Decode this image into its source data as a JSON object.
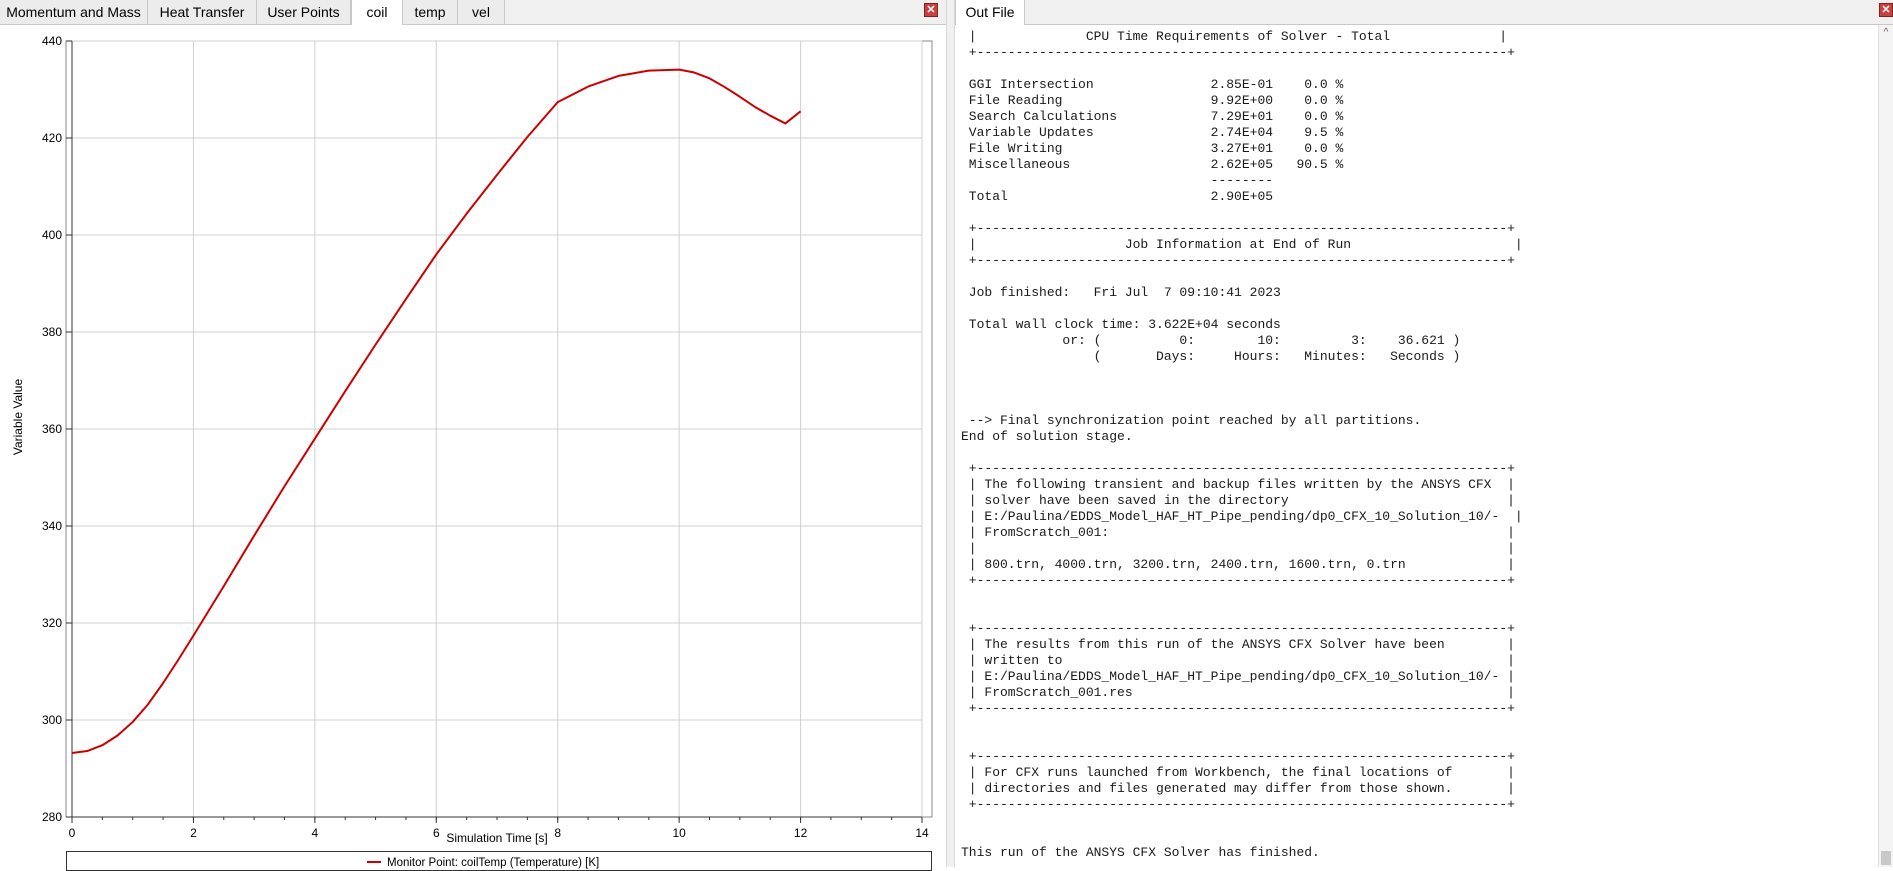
{
  "left_tabs": [
    {
      "label": "Momentum and Mass",
      "active": false
    },
    {
      "label": "Heat Transfer",
      "active": false
    },
    {
      "label": "User Points",
      "active": false
    },
    {
      "label": "coil",
      "active": true
    },
    {
      "label": "temp",
      "active": false
    },
    {
      "label": "vel",
      "active": false
    }
  ],
  "right_tabs": [
    {
      "label": "Out File",
      "active": true
    }
  ],
  "close_glyph": "✕",
  "scroll_up_glyph": "^",
  "chart_data": {
    "type": "line",
    "title": "",
    "xlabel": "Simulation Time [s]",
    "ylabel": "Variable Value",
    "xlim": [
      0,
      14
    ],
    "ylim": [
      280,
      440
    ],
    "xticks": [
      0,
      2,
      4,
      6,
      8,
      10,
      12,
      14
    ],
    "yticks": [
      280,
      300,
      320,
      340,
      360,
      380,
      400,
      420,
      440
    ],
    "grid": true,
    "legend": "bottom",
    "series": [
      {
        "name": "Monitor Point: coilTemp (Temperature) [K]",
        "color": "#cc0000",
        "x": [
          0,
          0.25,
          0.5,
          0.75,
          1.0,
          1.25,
          1.5,
          1.75,
          2.0,
          2.5,
          3.0,
          3.5,
          4.0,
          4.5,
          5.0,
          5.5,
          6.0,
          6.5,
          7.0,
          7.5,
          8.0,
          8.5,
          9.0,
          9.5,
          10.0,
          10.25,
          10.5,
          10.75,
          11.0,
          11.25,
          11.5,
          11.75,
          12.0
        ],
        "y": [
          293.2,
          293.6,
          294.8,
          296.8,
          299.6,
          303.2,
          307.6,
          312.4,
          317.4,
          327.6,
          338.0,
          348.2,
          358.0,
          367.8,
          377.4,
          386.8,
          396.0,
          404.4,
          412.4,
          420.2,
          427.4,
          430.6,
          432.8,
          433.9,
          434.1,
          433.5,
          432.3,
          430.5,
          428.5,
          426.4,
          424.6,
          423.0,
          425.5
        ]
      }
    ]
  },
  "out_file": {
    "lines": [
      " |              CPU Time Requirements of Solver - Total              |",
      " +--------------------------------------------------------------------+",
      "",
      " GGI Intersection               2.85E-01    0.0 %",
      " File Reading                   9.92E+00    0.0 %",
      " Search Calculations            7.29E+01    0.0 %",
      " Variable Updates               2.74E+04    9.5 %",
      " File Writing                   3.27E+01    0.0 %",
      " Miscellaneous                  2.62E+05   90.5 %",
      "                                --------",
      " Total                          2.90E+05",
      "",
      " +--------------------------------------------------------------------+",
      " |                   Job Information at End of Run                     |",
      " +--------------------------------------------------------------------+",
      "",
      " Job finished:   Fri Jul  7 09:10:41 2023",
      "",
      " Total wall clock time: 3.622E+04 seconds",
      "             or: (          0:        10:         3:    36.621 )",
      "                 (       Days:     Hours:   Minutes:   Seconds )",
      "",
      "",
      "",
      " --> Final synchronization point reached by all partitions.",
      "End of solution stage.",
      "",
      " +--------------------------------------------------------------------+",
      " | The following transient and backup files written by the ANSYS CFX  |",
      " | solver have been saved in the directory                            |",
      " | E:/Paulina/EDDS_Model_HAF_HT_Pipe_pending/dp0_CFX_10_Solution_10/-  |",
      " | FromScratch_001:                                                   |",
      " |                                                                    |",
      " | 800.trn, 4000.trn, 3200.trn, 2400.trn, 1600.trn, 0.trn             |",
      " +--------------------------------------------------------------------+",
      "",
      "",
      " +--------------------------------------------------------------------+",
      " | The results from this run of the ANSYS CFX Solver have been        |",
      " | written to                                                         |",
      " | E:/Paulina/EDDS_Model_HAF_HT_Pipe_pending/dp0_CFX_10_Solution_10/- |",
      " | FromScratch_001.res                                                |",
      " +--------------------------------------------------------------------+",
      "",
      "",
      " +--------------------------------------------------------------------+",
      " | For CFX runs launched from Workbench, the final locations of       |",
      " | directories and files generated may differ from those shown.       |",
      " +--------------------------------------------------------------------+",
      "",
      "",
      "This run of the ANSYS CFX Solver has finished."
    ]
  }
}
